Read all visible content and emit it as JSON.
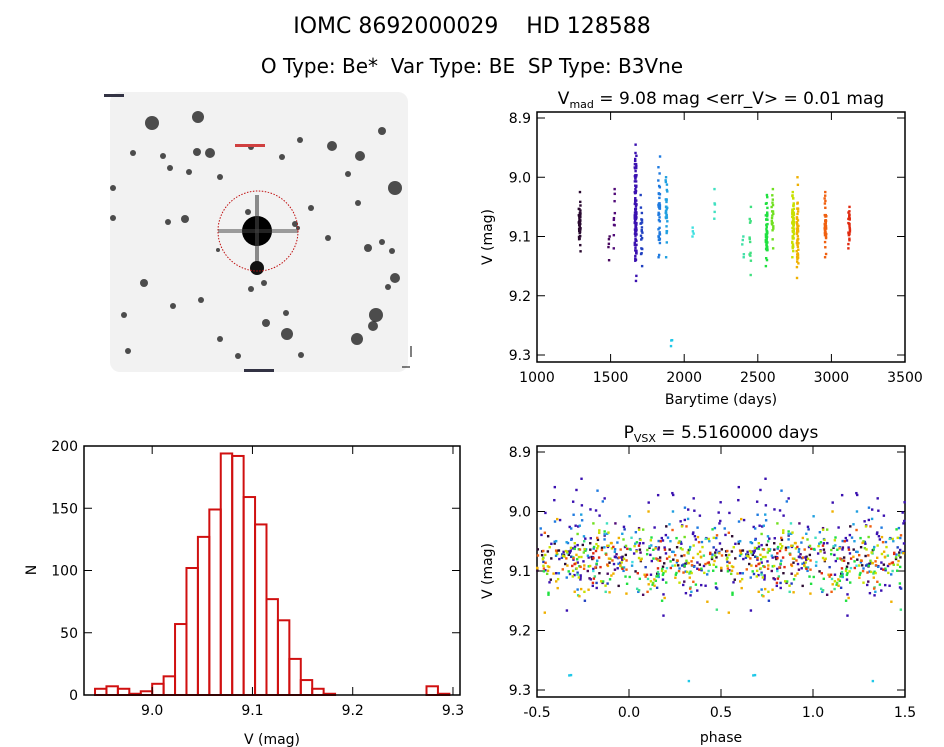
{
  "header": {
    "title": "IOMC 8692000029    HD 128588",
    "subtitle": "O Type: Be*  Var Type: BE  SP Type: B3Vne"
  },
  "chart_data": [
    {
      "type": "image",
      "description_label": "finding chart",
      "title": ""
    },
    {
      "type": "scatter",
      "title_main": "V",
      "title_sub": "mad",
      "title_rest": " = 9.08 mag <err_V> = 0.01 mag",
      "xlabel": "Barytime (days)",
      "ylabel": "V (mag)",
      "xlim": [
        1000,
        3500
      ],
      "ylim": [
        9.31,
        8.89
      ],
      "y_inverted": true,
      "xticks": [
        "1000",
        "1500",
        "2000",
        "2500",
        "3000",
        "3500"
      ],
      "yticks": [
        "8.9",
        "9.0",
        "9.1",
        "9.2",
        "9.3"
      ],
      "clusters": [
        {
          "t": 1290,
          "vmin": 9.025,
          "vmax": 9.125,
          "n": 50,
          "color": "#2a0a30"
        },
        {
          "t": 1490,
          "vmin": 9.1,
          "vmax": 9.14,
          "n": 5,
          "color": "#4a0a60"
        },
        {
          "t": 1525,
          "vmin": 9.02,
          "vmax": 9.12,
          "n": 10,
          "color": "#500a78"
        },
        {
          "t": 1670,
          "vmin": 8.945,
          "vmax": 9.175,
          "n": 110,
          "color": "#3a10b0"
        },
        {
          "t": 1710,
          "vmin": 9.03,
          "vmax": 9.15,
          "n": 20,
          "color": "#2040c0"
        },
        {
          "t": 1830,
          "vmin": 8.965,
          "vmax": 9.135,
          "n": 40,
          "color": "#1e7ae0"
        },
        {
          "t": 1880,
          "vmin": 9.0,
          "vmax": 9.135,
          "n": 30,
          "color": "#20a0e0"
        },
        {
          "t": 1915,
          "vmin": 9.275,
          "vmax": 9.285,
          "n": 3,
          "color": "#20c8e8"
        },
        {
          "t": 2060,
          "vmin": 9.085,
          "vmax": 9.1,
          "n": 4,
          "color": "#40e0e0"
        },
        {
          "t": 2210,
          "vmin": 9.02,
          "vmax": 9.07,
          "n": 5,
          "color": "#40e0c0"
        },
        {
          "t": 2400,
          "vmin": 9.1,
          "vmax": 9.135,
          "n": 5,
          "color": "#40e0a8"
        },
        {
          "t": 2450,
          "vmin": 9.05,
          "vmax": 9.165,
          "n": 12,
          "color": "#40e080"
        },
        {
          "t": 2560,
          "vmin": 9.03,
          "vmax": 9.15,
          "n": 50,
          "color": "#20e040"
        },
        {
          "t": 2600,
          "vmin": 9.02,
          "vmax": 9.12,
          "n": 20,
          "color": "#70e020"
        },
        {
          "t": 2740,
          "vmin": 9.025,
          "vmax": 9.135,
          "n": 60,
          "color": "#c8e000"
        },
        {
          "t": 2770,
          "vmin": 9.0,
          "vmax": 9.17,
          "n": 50,
          "color": "#f0b000"
        },
        {
          "t": 2960,
          "vmin": 9.025,
          "vmax": 9.135,
          "n": 40,
          "color": "#f06010"
        },
        {
          "t": 3120,
          "vmin": 9.05,
          "vmax": 9.12,
          "n": 25,
          "color": "#e02a10"
        }
      ]
    },
    {
      "type": "bar",
      "subtype": "histogram",
      "xlabel": "V (mag)",
      "ylabel": "N",
      "xlim": [
        8.932,
        9.307
      ],
      "ylim": [
        0,
        200
      ],
      "xticks": [
        "9.0",
        "9.1",
        "9.2",
        "9.3"
      ],
      "yticks": [
        "0",
        "50",
        "100",
        "150",
        "200"
      ],
      "bin_start": 8.943,
      "bin_width": 0.0114,
      "counts": [
        5,
        7,
        5,
        1,
        3,
        9,
        15,
        57,
        102,
        127,
        149,
        194,
        192,
        159,
        137,
        77,
        60,
        29,
        12,
        5,
        1,
        0,
        0,
        0,
        0,
        0,
        0,
        0,
        0,
        7,
        1
      ],
      "color": "#d01010"
    },
    {
      "type": "scatter",
      "title_main": "P",
      "title_sub": "VSX",
      "title_rest": " = 5.5160000 days",
      "period_days": 5.516,
      "xlabel": "phase",
      "ylabel": "V (mag)",
      "xlim": [
        -0.5,
        1.5
      ],
      "ylim": [
        9.31,
        8.89
      ],
      "y_inverted": true,
      "xticks": [
        "-0.5",
        "0.0",
        "0.5",
        "1.0",
        "1.5"
      ],
      "yticks": [
        "8.9",
        "9.0",
        "9.1",
        "9.2",
        "9.3"
      ]
    }
  ]
}
